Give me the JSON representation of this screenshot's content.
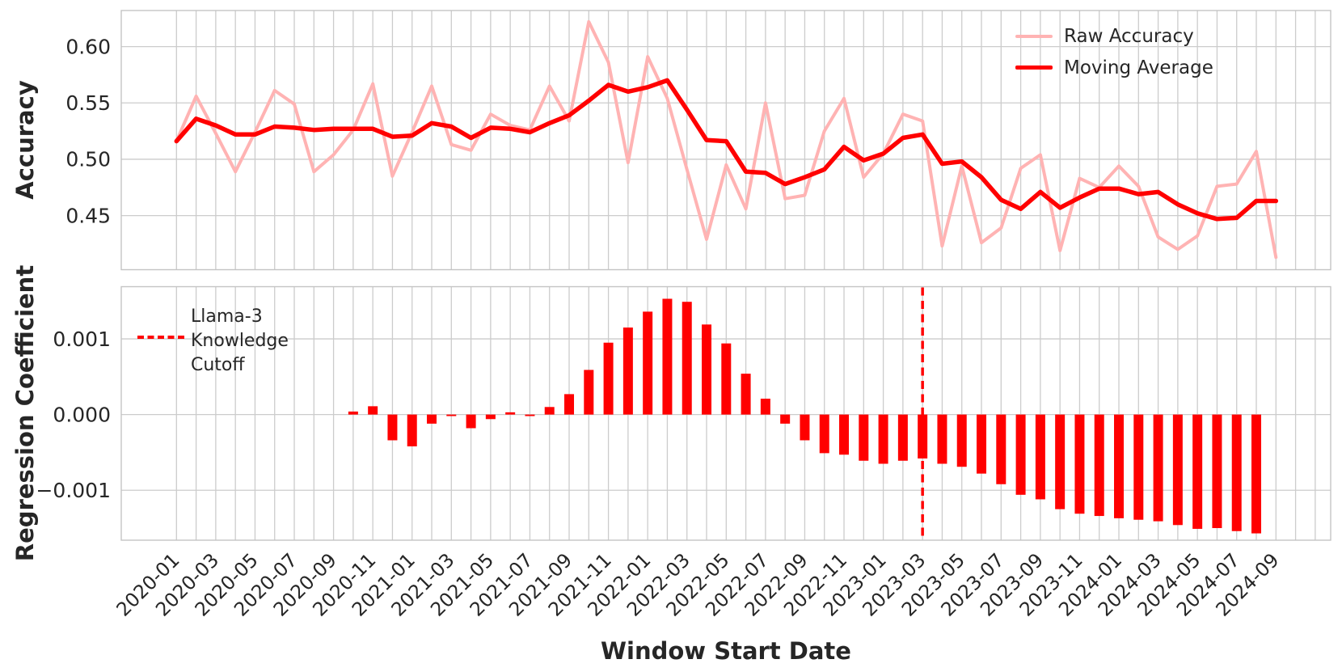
{
  "figure": {
    "background": "#ffffff",
    "text_color": "#262626",
    "grid_color": "#cccccc",
    "spine_color": "#c4c4c4"
  },
  "months": [
    "2020-01",
    "2020-02",
    "2020-03",
    "2020-04",
    "2020-05",
    "2020-06",
    "2020-07",
    "2020-08",
    "2020-09",
    "2020-10",
    "2020-11",
    "2020-12",
    "2021-01",
    "2021-02",
    "2021-03",
    "2021-04",
    "2021-05",
    "2021-06",
    "2021-07",
    "2021-08",
    "2021-09",
    "2021-10",
    "2021-11",
    "2021-12",
    "2022-01",
    "2022-02",
    "2022-03",
    "2022-04",
    "2022-05",
    "2022-06",
    "2022-07",
    "2022-08",
    "2022-09",
    "2022-10",
    "2022-11",
    "2022-12",
    "2023-01",
    "2023-02",
    "2023-03",
    "2023-04",
    "2023-05",
    "2023-06",
    "2023-07",
    "2023-08",
    "2023-09",
    "2023-10",
    "2023-11",
    "2023-12",
    "2024-01",
    "2024-02",
    "2024-03",
    "2024-04",
    "2024-05",
    "2024-06",
    "2024-07",
    "2024-08",
    "2024-09"
  ],
  "chart_data": [
    {
      "type": "line",
      "ylabel": "Accuracy",
      "x_axis": "months (2020-01 to 2024-09, monthly)",
      "series": [
        {
          "name": "Raw Accuracy",
          "color": "#ffb3b3",
          "line_width": 4,
          "values": [
            0.516,
            0.556,
            0.523,
            0.489,
            0.524,
            0.561,
            0.549,
            0.489,
            0.504,
            0.526,
            0.567,
            0.485,
            0.524,
            0.565,
            0.513,
            0.508,
            0.54,
            0.53,
            0.526,
            0.565,
            0.534,
            0.622,
            0.586,
            0.497,
            0.591,
            0.554,
            0.491,
            0.429,
            0.495,
            0.456,
            0.55,
            0.465,
            0.468,
            0.525,
            0.554,
            0.484,
            0.505,
            0.54,
            0.534,
            0.423,
            0.494,
            0.426,
            0.439,
            0.492,
            0.504,
            0.419,
            0.483,
            0.475,
            0.494,
            0.476,
            0.431,
            0.42,
            0.432,
            0.476,
            0.478,
            0.507,
            0.413
          ]
        },
        {
          "name": "Moving Average",
          "color": "#ff0000",
          "line_width": 5.5,
          "values": [
            0.516,
            0.536,
            0.53,
            0.522,
            0.522,
            0.529,
            0.528,
            0.526,
            0.527,
            0.527,
            0.527,
            0.52,
            0.521,
            0.532,
            0.529,
            0.519,
            0.528,
            0.527,
            0.524,
            0.532,
            0.539,
            0.552,
            0.566,
            0.56,
            0.564,
            0.57,
            0.544,
            0.517,
            0.516,
            0.489,
            0.488,
            0.478,
            0.484,
            0.491,
            0.511,
            0.499,
            0.505,
            0.519,
            0.522,
            0.496,
            0.498,
            0.484,
            0.464,
            0.456,
            0.471,
            0.457,
            0.466,
            0.474,
            0.474,
            0.469,
            0.471,
            0.46,
            0.452,
            0.447,
            0.448,
            0.463,
            0.463
          ]
        }
      ],
      "yticks": {
        "values": [
          0.6,
          0.55,
          0.5,
          0.45
        ],
        "labels": [
          "0.60",
          "0.55",
          "0.50",
          "0.45"
        ]
      },
      "ylim": [
        0.402,
        0.632
      ],
      "grid": true,
      "legend_position": "upper right"
    },
    {
      "type": "bar",
      "ylabel": "Regression Coefficient",
      "xlabel": "Window Start Date",
      "bar_color": "#ff0000",
      "values": [
        null,
        null,
        null,
        null,
        null,
        null,
        null,
        null,
        null,
        4e-05,
        0.00011,
        -0.00034,
        -0.00042,
        -0.00012,
        -2e-05,
        -0.00018,
        -6e-05,
        3e-05,
        -2e-05,
        0.0001,
        0.00027,
        0.00059,
        0.00095,
        0.00115,
        0.00136,
        0.00153,
        0.00149,
        0.00119,
        0.00094,
        0.00054,
        0.00021,
        -0.00012,
        -0.00034,
        -0.00051,
        -0.00053,
        -0.00061,
        -0.00065,
        -0.00061,
        -0.00058,
        -0.00065,
        -0.00069,
        -0.00078,
        -0.00092,
        -0.00106,
        -0.00112,
        -0.00125,
        -0.00131,
        -0.00134,
        -0.00137,
        -0.00139,
        -0.00141,
        -0.00146,
        -0.00151,
        -0.0015,
        -0.00154,
        -0.00157,
        null
      ],
      "yticks": {
        "values": [
          0.001,
          0.0,
          -0.001
        ],
        "labels": [
          "0.001",
          "0.000",
          "−0.001"
        ]
      },
      "ylim": [
        -0.00166,
        0.00169
      ],
      "grid": true,
      "xtick_labels": [
        "2020-01",
        "2020-03",
        "2020-05",
        "2020-07",
        "2020-09",
        "2020-11",
        "2021-01",
        "2021-03",
        "2021-05",
        "2021-07",
        "2021-09",
        "2021-11",
        "2022-01",
        "2022-03",
        "2022-05",
        "2022-07",
        "2022-09",
        "2022-11",
        "2023-01",
        "2023-03",
        "2023-05",
        "2023-07",
        "2023-09",
        "2023-11",
        "2024-01",
        "2024-03",
        "2024-05",
        "2024-07",
        "2024-09"
      ],
      "cutoff_line": {
        "x": "2023-03",
        "color": "#ff0000",
        "style": "dashed",
        "label_lines": [
          "Llama-3",
          "Knowledge",
          "Cutoff"
        ]
      }
    }
  ]
}
